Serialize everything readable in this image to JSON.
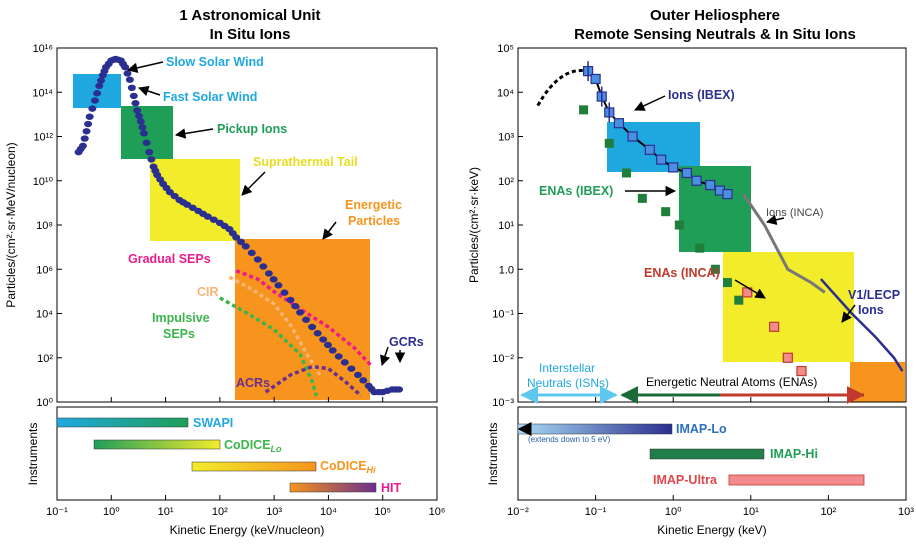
{
  "chart_data": [
    {
      "type": "scatter",
      "title": "1 Astronomical Unit",
      "subtitle": "In Situ Ions",
      "xlabel": "Kinetic Energy (keV/nucleon)",
      "ylabel": "Particles/(cm²·sr·MeV/nucleon)",
      "xscale": "log",
      "yscale": "log",
      "xlim": [
        0.1,
        1000000
      ],
      "ylim": [
        1,
        1e+17
      ],
      "x_ticks": [
        "10⁻¹",
        "10⁰",
        "10¹",
        "10²",
        "10³",
        "10⁴",
        "10⁵",
        "10⁶"
      ],
      "y_ticks": [
        "10⁰",
        "10²",
        "10⁴",
        "10⁶",
        "10⁸",
        "10¹⁰",
        "10¹²",
        "10¹⁴",
        "10¹⁶"
      ],
      "main_spectrum": [
        [
          0.25,
          1000000000000.0
        ],
        [
          0.3,
          2000000000000.0
        ],
        [
          0.35,
          10000000000000.0
        ],
        [
          0.4,
          50000000000000.0
        ],
        [
          0.5,
          300000000000000.0
        ],
        [
          0.6,
          1500000000000000.0
        ],
        [
          0.7,
          5000000000000000.0
        ],
        [
          0.8,
          1.2e+16
        ],
        [
          1.0,
          2.5e+16
        ],
        [
          1.2,
          3e+16
        ],
        [
          1.5,
          2.5e+16
        ],
        [
          1.8,
          1.2e+16
        ],
        [
          2.2,
          3000000000000000.0
        ],
        [
          2.6,
          500000000000000.0
        ],
        [
          3,
          100000000000000.0
        ],
        [
          3.5,
          30000000000000.0
        ],
        [
          4,
          8000000000000.0
        ],
        [
          5,
          1000000000000.0
        ],
        [
          6,
          200000000000.0
        ],
        [
          7,
          80000000000.0
        ],
        [
          9,
          30000000000.0
        ],
        [
          12,
          12000000000.0
        ],
        [
          18,
          5000000000.0
        ],
        [
          25,
          3000000000.0
        ],
        [
          40,
          1500000000.0
        ],
        [
          60,
          800000000.0
        ],
        [
          100,
          400000000.0
        ],
        [
          150,
          200000000.0
        ],
        [
          200,
          80000000.0
        ],
        [
          300,
          30000000.0
        ],
        [
          500,
          7000000.0
        ],
        [
          800,
          1500000.0
        ],
        [
          1200,
          400000.0
        ],
        [
          2000,
          80000.0
        ],
        [
          3000,
          20000.0
        ],
        [
          5000,
          4000.0
        ],
        [
          8000,
          1000.0
        ],
        [
          12000,
          300.0
        ],
        [
          20000,
          80.0
        ],
        [
          35000,
          20.0
        ],
        [
          55000,
          6
        ],
        [
          70000,
          3
        ],
        [
          100000,
          3
        ],
        [
          150000,
          4
        ],
        [
          200000,
          4
        ]
      ],
      "gradual_seps": [
        [
          200,
          2000000.0
        ],
        [
          500,
          800000.0
        ],
        [
          1000,
          200000.0
        ],
        [
          3000,
          30000.0
        ],
        [
          10000,
          4000.0
        ],
        [
          30000,
          400.0
        ],
        [
          60000,
          60.0
        ]
      ],
      "cir": [
        [
          150,
          1000000.0
        ],
        [
          400,
          250000.0
        ],
        [
          1000,
          50000.0
        ],
        [
          2000,
          5000.0
        ],
        [
          4000,
          200.0
        ],
        [
          7000,
          20.0
        ]
      ],
      "impulsive_seps": [
        [
          100,
          100000.0
        ],
        [
          300,
          20000.0
        ],
        [
          1000,
          3000.0
        ],
        [
          3000,
          200.0
        ],
        [
          5000,
          10.0
        ],
        [
          6000,
          2
        ]
      ],
      "acrs": [
        [
          700,
          3
        ],
        [
          2000,
          20.0
        ],
        [
          5000,
          50.0
        ],
        [
          10000,
          40.0
        ],
        [
          20000,
          10.0
        ],
        [
          40000,
          2
        ]
      ],
      "region_labels": [
        "Slow Solar Wind",
        "Fast Solar Wind",
        "Pickup Ions",
        "Suprathermal Tail",
        "Energetic Particles",
        "Gradual SEPs",
        "CIR",
        "Impulsive SEPs",
        "ACRs",
        "GCRs"
      ],
      "instruments_label": "Instruments",
      "instruments": [
        {
          "name": "SWAPI",
          "range": [
            0.1,
            20
          ]
        },
        {
          "name": "CoDICE_Lo",
          "range": [
            0.5,
            40
          ]
        },
        {
          "name": "CoDICE_Hi",
          "range": [
            30,
            5000
          ]
        },
        {
          "name": "HIT",
          "range": [
            2000,
            60000
          ]
        }
      ]
    },
    {
      "type": "scatter",
      "title": "Outer Heliosphere",
      "subtitle": "Remote Sensing Neutrals & In Situ Ions",
      "xlabel": "Kinetic Energy (keV)",
      "ylabel": "Particles/(cm²·sr·keV)",
      "xscale": "log",
      "yscale": "log",
      "xlim": [
        0.01,
        1000
      ],
      "ylim": [
        0.001,
        100000
      ],
      "x_ticks": [
        "10⁻²",
        "10⁻¹",
        "10⁰",
        "10¹",
        "10²",
        "10³"
      ],
      "y_ticks": [
        "10⁻³",
        "10⁻²",
        "10⁻¹",
        "1.0",
        "10¹",
        "10²",
        "10³",
        "10⁴",
        "10⁵"
      ],
      "ions_ibex": [
        [
          0.08,
          30000
        ],
        [
          0.1,
          20000
        ],
        [
          0.12,
          8000
        ],
        [
          0.15,
          3500
        ],
        [
          0.2,
          2000
        ],
        [
          0.3,
          1000
        ],
        [
          0.5,
          500
        ],
        [
          0.7,
          300
        ],
        [
          1.0,
          200
        ],
        [
          1.5,
          150
        ],
        [
          2.0,
          100
        ],
        [
          3.0,
          80
        ],
        [
          4.0,
          60
        ],
        [
          5.0,
          50
        ]
      ],
      "enas_ibex": [
        [
          0.07,
          4000
        ],
        [
          0.15,
          700
        ],
        [
          0.25,
          150
        ],
        [
          0.4,
          40
        ],
        [
          0.8,
          20
        ],
        [
          1.2,
          10
        ],
        [
          2.2,
          3
        ],
        [
          3.5,
          1
        ],
        [
          5,
          0.5
        ],
        [
          7,
          0.2
        ]
      ],
      "enas_inca": [
        [
          9,
          0.3
        ],
        [
          20,
          0.05
        ],
        [
          30,
          0.01
        ],
        [
          45,
          0.005
        ]
      ],
      "ions_inca": [
        [
          8,
          50
        ],
        [
          15,
          10
        ],
        [
          30,
          1
        ],
        [
          60,
          0.5
        ],
        [
          90,
          0.3
        ]
      ],
      "v1_lecp": [
        [
          80,
          0.6
        ],
        [
          200,
          0.1
        ],
        [
          400,
          0.03
        ],
        [
          700,
          0.01
        ],
        [
          900,
          0.005
        ]
      ],
      "region_labels": [
        "Ions (IBEX)",
        "ENAs (IBEX)",
        "Ions (INCA)",
        "ENAs (INCA)",
        "V1/LECP Ions",
        "Interstellar Neutrals (ISNs)",
        "Energetic Neutral Atoms (ENAs)"
      ],
      "instruments_label": "Instruments",
      "instruments": [
        {
          "name": "IMAP-Lo",
          "range": [
            0.01,
            1
          ],
          "note": "(extends down to 5 eV)"
        },
        {
          "name": "IMAP-Hi",
          "range": [
            0.4,
            15
          ]
        },
        {
          "name": "IMAP-Ultra",
          "range": [
            5,
            300
          ]
        }
      ]
    }
  ],
  "labels": {
    "left_title_1": "1 Astronomical Unit",
    "left_title_2": "In Situ Ions",
    "right_title_1": "Outer Heliosphere",
    "right_title_2": "Remote Sensing Neutrals & In Situ Ions",
    "left_xlabel": "Kinetic Energy (keV/nucleon)",
    "left_ylabel": "Particles/(cm²·sr·MeV/nucleon)",
    "right_xlabel": "Kinetic Energy (keV)",
    "right_ylabel": "Particles/(cm²·sr·keV)",
    "instruments": "Instruments",
    "slow_solar_wind": "Slow Solar Wind",
    "fast_solar_wind": "Fast Solar Wind",
    "pickup_ions": "Pickup Ions",
    "suprathermal_tail": "Suprathermal Tail",
    "energetic": "Energetic",
    "particles": "Particles",
    "gradual_seps": "Gradual SEPs",
    "cir": "CIR",
    "impulsive": "Impulsive",
    "seps": "SEPs",
    "acrs": "ACRs",
    "gcrs": "GCRs",
    "swapi": "SWAPI",
    "codice_lo": "CoDICE",
    "codice_lo_sub": "Lo",
    "codice_hi": "CoDICE",
    "codice_hi_sub": "Hi",
    "hit": "HIT",
    "ions_ibex": "Ions (IBEX)",
    "enas_ibex": "ENAs (IBEX)",
    "ions_inca": "Ions (INCA)",
    "enas_inca": "ENAs (INCA)",
    "v1_lecp": "V1/LECP",
    "ions": "Ions",
    "interstellar": "Interstellar",
    "neutrals_isns": "Neutrals (ISNs)",
    "enas_full": "Energetic Neutral Atoms (ENAs)",
    "imap_lo": "IMAP-Lo",
    "imap_lo_note": "(extends down to 5 eV)",
    "imap_hi": "IMAP-Hi",
    "imap_ultra": "IMAP-Ultra"
  },
  "colors": {
    "navy": "#2b2f8f",
    "cyan": "#1fa8e0",
    "green": "#1f9e57",
    "yellow": "#f2ec2b",
    "orange": "#f7941d",
    "magenta": "#ec1c8c",
    "lightorange": "#f9b572",
    "lightgreen": "#3cb54a",
    "red": "#e0474c",
    "purple": "#6b2f8f"
  }
}
